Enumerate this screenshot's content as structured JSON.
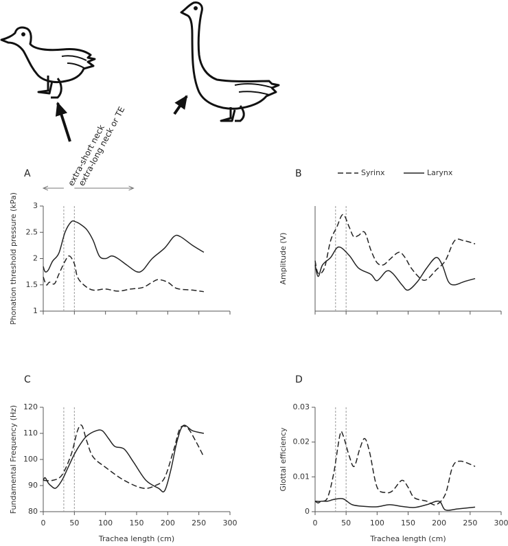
{
  "chart_data": [
    {
      "type": "line",
      "label": "A",
      "ylabel": "Phonation threshold pressure (kPa)",
      "xlim": [
        0,
        300
      ],
      "xticks": [
        0,
        50,
        100,
        150,
        200,
        250,
        300
      ],
      "xtick_labels": false,
      "ylim": [
        1,
        3
      ],
      "yticks": [
        1,
        1.5,
        2,
        2.5,
        3
      ],
      "markers": [
        33,
        50
      ],
      "marker_color": "#999",
      "annotations": [
        {
          "text": "extra-short neck",
          "from": 33,
          "to": 0
        },
        {
          "text": "extra-long neck or TE",
          "from": 50,
          "to": 145
        }
      ],
      "series": [
        {
          "color": "#222",
          "dash": "dashed",
          "x": [
            0,
            5,
            10,
            18,
            25,
            35,
            42,
            50,
            55,
            65,
            80,
            100,
            120,
            140,
            160,
            175,
            185,
            200,
            215,
            240,
            258
          ],
          "values": [
            1.65,
            1.5,
            1.55,
            1.52,
            1.7,
            1.95,
            2.05,
            1.9,
            1.65,
            1.5,
            1.4,
            1.42,
            1.38,
            1.42,
            1.45,
            1.55,
            1.6,
            1.55,
            1.43,
            1.4,
            1.37
          ]
        },
        {
          "color": "#222",
          "dash": "solid",
          "x": [
            0,
            3,
            8,
            15,
            25,
            35,
            45,
            52,
            60,
            70,
            80,
            90,
            100,
            110,
            120,
            135,
            150,
            160,
            175,
            195,
            210,
            220,
            240,
            258
          ],
          "values": [
            1.85,
            1.75,
            1.78,
            1.95,
            2.1,
            2.5,
            2.7,
            2.7,
            2.65,
            2.55,
            2.35,
            2.05,
            2.0,
            2.05,
            2.0,
            1.87,
            1.75,
            1.78,
            2.0,
            2.2,
            2.42,
            2.42,
            2.25,
            2.12
          ]
        }
      ]
    },
    {
      "type": "line",
      "label": "B",
      "ylabel": "Amplitude (V)",
      "xlim": [
        0,
        300
      ],
      "xticks": [
        0,
        50,
        100,
        150,
        200,
        250,
        300
      ],
      "xtick_labels": false,
      "ylim": [
        0,
        1
      ],
      "markers": [
        33,
        50
      ],
      "marker_color": "#999",
      "series": [
        {
          "name": "Syrinx",
          "color": "#222",
          "dash": "dashed",
          "x": [
            0,
            5,
            15,
            25,
            35,
            45,
            55,
            62,
            70,
            80,
            90,
            100,
            110,
            120,
            135,
            145,
            155,
            170,
            180,
            195,
            210,
            225,
            240,
            258
          ],
          "values": [
            0.48,
            0.36,
            0.41,
            0.67,
            0.8,
            0.92,
            0.8,
            0.71,
            0.72,
            0.75,
            0.58,
            0.46,
            0.44,
            0.49,
            0.56,
            0.51,
            0.41,
            0.31,
            0.3,
            0.39,
            0.48,
            0.67,
            0.67,
            0.64
          ]
        },
        {
          "name": "Larynx",
          "color": "#222",
          "dash": "solid",
          "x": [
            0,
            5,
            12,
            25,
            38,
            55,
            70,
            90,
            100,
            115,
            125,
            140,
            150,
            165,
            180,
            195,
            205,
            215,
            225,
            240,
            258
          ],
          "values": [
            0.44,
            0.33,
            0.44,
            0.51,
            0.61,
            0.53,
            0.41,
            0.35,
            0.29,
            0.38,
            0.36,
            0.25,
            0.2,
            0.28,
            0.41,
            0.51,
            0.44,
            0.28,
            0.25,
            0.28,
            0.31
          ]
        }
      ]
    },
    {
      "type": "line",
      "label": "C",
      "ylabel": "Fundamental Frequency (Hz)",
      "xlabel": "Trachea length (cm)",
      "xlim": [
        0,
        300
      ],
      "xticks": [
        0,
        50,
        100,
        150,
        200,
        250,
        300
      ],
      "xtick_labels": true,
      "ylim": [
        80,
        120
      ],
      "yticks": [
        80,
        90,
        100,
        110,
        120
      ],
      "markers": [
        33,
        50
      ],
      "marker_color": "#999",
      "series": [
        {
          "color": "#222",
          "dash": "dashed",
          "x": [
            0,
            15,
            30,
            45,
            55,
            62,
            70,
            80,
            100,
            130,
            160,
            180,
            195,
            210,
            220,
            232,
            245,
            258
          ],
          "values": [
            92,
            92,
            94,
            102,
            111,
            113,
            107,
            101,
            97,
            92,
            89,
            90,
            93,
            104,
            112,
            112,
            107,
            101
          ]
        },
        {
          "color": "#222",
          "dash": "solid",
          "x": [
            0,
            3,
            8,
            12,
            20,
            30,
            40,
            50,
            60,
            70,
            85,
            95,
            105,
            115,
            130,
            145,
            165,
            185,
            195,
            205,
            215,
            225,
            240,
            258
          ],
          "values": [
            92,
            93,
            91,
            90,
            89,
            92,
            97,
            102,
            106,
            109,
            111,
            111,
            108,
            105,
            104,
            99,
            92,
            89,
            88,
            96,
            107,
            113,
            111,
            110
          ]
        }
      ]
    },
    {
      "type": "line",
      "label": "D",
      "ylabel": "Glottal efficiency",
      "xlabel": "Trachea length (cm)",
      "xlim": [
        0,
        300
      ],
      "xticks": [
        0,
        50,
        100,
        150,
        200,
        250,
        300
      ],
      "xtick_labels": true,
      "ylim": [
        0,
        0.03
      ],
      "yticks": [
        0,
        0.01,
        0.02,
        0.03
      ],
      "markers": [
        33,
        50
      ],
      "marker_color": "#999",
      "series": [
        {
          "color": "#222",
          "dash": "dashed",
          "x": [
            0,
            10,
            20,
            30,
            40,
            45,
            55,
            63,
            72,
            80,
            88,
            100,
            115,
            125,
            140,
            150,
            160,
            180,
            195,
            210,
            222,
            235,
            258
          ],
          "values": [
            0.003,
            0.003,
            0.004,
            0.011,
            0.022,
            0.022,
            0.016,
            0.013,
            0.018,
            0.021,
            0.017,
            0.007,
            0.0055,
            0.006,
            0.009,
            0.007,
            0.004,
            0.003,
            0.002,
            0.005,
            0.013,
            0.0145,
            0.013
          ]
        },
        {
          "color": "#222",
          "dash": "solid",
          "x": [
            0,
            5,
            10,
            20,
            30,
            45,
            60,
            80,
            100,
            120,
            140,
            160,
            180,
            200,
            210,
            230,
            258
          ],
          "values": [
            0.003,
            0.0025,
            0.003,
            0.003,
            0.0035,
            0.0037,
            0.002,
            0.0015,
            0.0014,
            0.002,
            0.0015,
            0.0012,
            0.002,
            0.003,
            0.0005,
            0.0008,
            0.0013
          ]
        }
      ]
    }
  ]
}
